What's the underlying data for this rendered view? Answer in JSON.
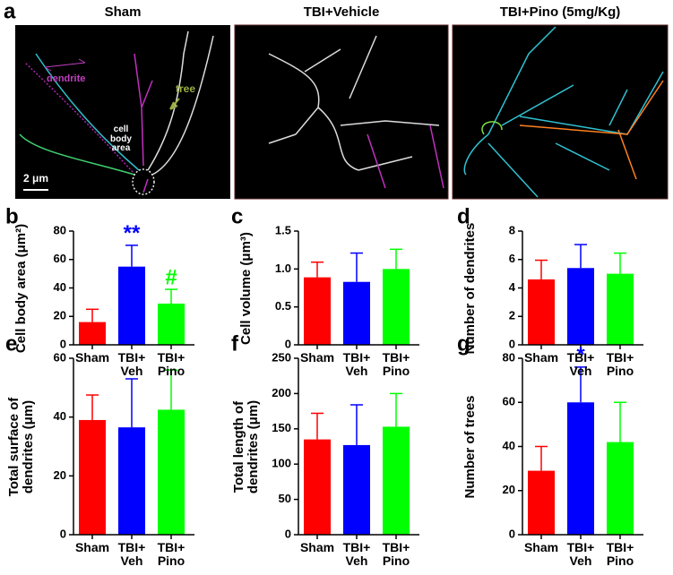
{
  "panel_a": {
    "letter": "a",
    "titles": [
      "Sham",
      "TBI+Vehicle",
      "TBI+Pino (5mg/Kg)"
    ],
    "labels": [
      "dendrite",
      "tree",
      "cell body area"
    ],
    "scale_bar": "2 μm"
  },
  "chart_data": [
    {
      "panel": "b",
      "type": "bar",
      "ylabel": "Cell body area (μm²)",
      "categories": [
        "Sham",
        "TBI+\nVeh",
        "TBI+\nPino"
      ],
      "values": [
        16,
        55,
        29
      ],
      "errors": [
        9,
        15,
        10
      ],
      "colors": [
        "#ff0000",
        "#0000ff",
        "#00ff00"
      ],
      "annotations": [
        null,
        "**",
        "#"
      ],
      "ylim": [
        0,
        80
      ],
      "yticks": [
        0,
        20,
        40,
        60,
        80
      ]
    },
    {
      "panel": "c",
      "type": "bar",
      "ylabel": "Cell volume (μm³)",
      "categories": [
        "Sham",
        "TBI+\nVeh",
        "TBI+\nPino"
      ],
      "values": [
        0.89,
        0.83,
        1.0
      ],
      "errors": [
        0.2,
        0.38,
        0.26
      ],
      "colors": [
        "#ff0000",
        "#0000ff",
        "#00ff00"
      ],
      "ylim": [
        0,
        1.5
      ],
      "yticks": [
        0,
        0.5,
        {
          "value": 1,
          "label": "1.0"
        },
        1.5
      ]
    },
    {
      "panel": "d",
      "type": "bar",
      "ylabel": "Number of dendrites",
      "categories": [
        "Sham",
        "TBI+\nVeh",
        "TBI+\nPino"
      ],
      "values": [
        4.6,
        5.4,
        5.0
      ],
      "errors": [
        1.35,
        1.65,
        1.45
      ],
      "colors": [
        "#ff0000",
        "#0000ff",
        "#00ff00"
      ],
      "ylim": [
        0,
        8
      ],
      "yticks": [
        0,
        2,
        4,
        6,
        8
      ]
    },
    {
      "panel": "e",
      "type": "bar",
      "ylabel": "Total surface of\ndendrites (μm)",
      "categories": [
        "Sham",
        "TBI+\nVeh",
        "TBI+\nPino"
      ],
      "values": [
        39,
        36.5,
        42.5
      ],
      "errors": [
        8.5,
        16.5,
        13.5
      ],
      "colors": [
        "#ff0000",
        "#0000ff",
        "#00ff00"
      ],
      "ylim": [
        0,
        60
      ],
      "yticks": [
        0,
        20,
        40,
        60
      ]
    },
    {
      "panel": "f",
      "type": "bar",
      "ylabel": "Total length of\ndendrites (μm)",
      "categories": [
        "Sham",
        "TBI+\nVeh",
        "TBI+\nPino"
      ],
      "values": [
        135,
        127,
        153
      ],
      "errors": [
        37,
        57,
        47
      ],
      "colors": [
        "#ff0000",
        "#0000ff",
        "#00ff00"
      ],
      "ylim": [
        0,
        250
      ],
      "yticks": [
        0,
        50,
        100,
        150,
        200,
        250
      ]
    },
    {
      "panel": "g",
      "type": "bar",
      "ylabel": "Number of trees",
      "categories": [
        "Sham",
        "TBI+\nVeh",
        "TBI+\nPino"
      ],
      "values": [
        29,
        60,
        42
      ],
      "errors": [
        11,
        16,
        18
      ],
      "colors": [
        "#ff0000",
        "#0000ff",
        "#00ff00"
      ],
      "annotations": [
        null,
        "*",
        null
      ],
      "ylim": [
        0,
        80
      ],
      "yticks": [
        0,
        20,
        40,
        60,
        80
      ]
    }
  ]
}
